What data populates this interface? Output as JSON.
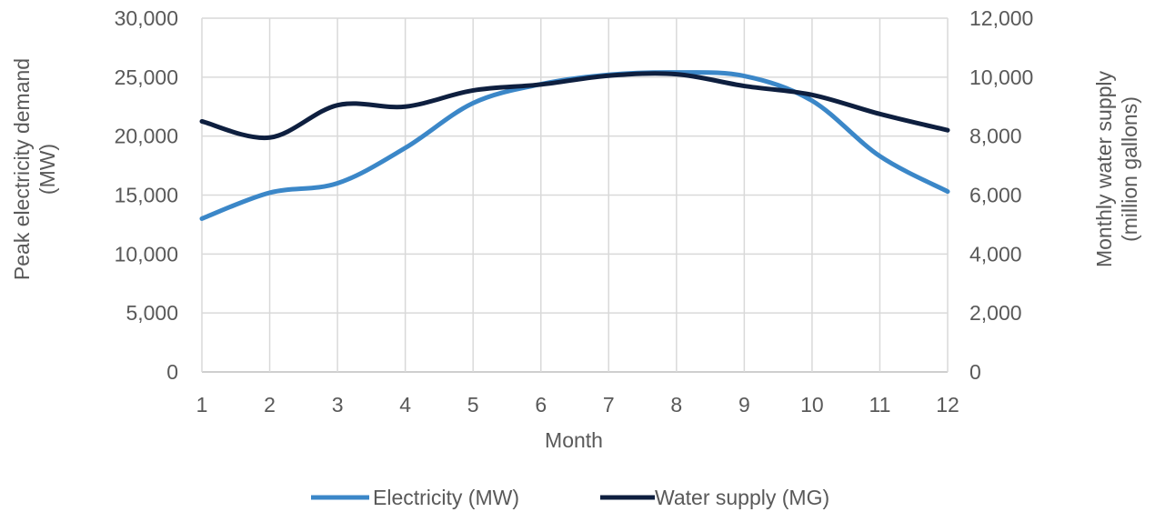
{
  "chart_data": {
    "type": "line",
    "title": "",
    "xlabel": "Month",
    "ylabel_left": "Peak electricity demand (MW)",
    "ylabel_left_lines": [
      "Peak electricity demand",
      "(MW)"
    ],
    "ylabel_right": "Monthly water supply (million gallons)",
    "ylabel_right_lines": [
      "Monthly water supply",
      "(million gallons)"
    ],
    "x": [
      1,
      2,
      3,
      4,
      5,
      6,
      7,
      8,
      9,
      10,
      11,
      12
    ],
    "x_tick_labels": [
      "1",
      "2",
      "3",
      "4",
      "5",
      "6",
      "7",
      "8",
      "9",
      "10",
      "11",
      "12"
    ],
    "ylim_left": [
      0,
      30000
    ],
    "ylim_right": [
      0,
      12000
    ],
    "y_left_tick_labels": [
      "0",
      "5,000",
      "10,000",
      "15,000",
      "20,000",
      "25,000",
      "30,000"
    ],
    "y_right_tick_labels": [
      "0",
      "2,000",
      "4,000",
      "6,000",
      "8,000",
      "10,000",
      "12,000"
    ],
    "grid": true,
    "legend_position": "bottom",
    "series": [
      {
        "name": "Electricity (MW)",
        "axis": "left",
        "color": "#3b87c8",
        "values": [
          13000,
          15200,
          16000,
          19000,
          22800,
          24400,
          25200,
          25400,
          25100,
          23000,
          18300,
          15300
        ]
      },
      {
        "name": "Water supply (MG)",
        "axis": "right",
        "color": "#0e1f3f",
        "values": [
          8500,
          7950,
          9050,
          9000,
          9550,
          9750,
          10050,
          10100,
          9700,
          9400,
          8750,
          8200
        ]
      }
    ]
  }
}
